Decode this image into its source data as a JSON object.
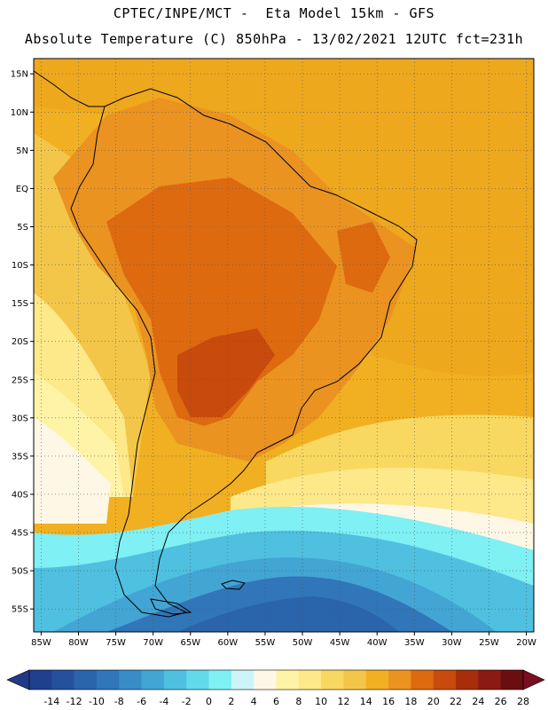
{
  "title_line1": "CPTEC/INPE/MCT -  Eta Model 15km - GFS",
  "title_line2": "Absolute Temperature (C) 850hPa - 13/02/2021 12UTC fct=231h",
  "lat_labels": [
    "15N",
    "10N",
    "5N",
    "EQ",
    "5S",
    "10S",
    "15S",
    "20S",
    "25S",
    "30S",
    "35S",
    "40S",
    "45S",
    "50S",
    "55S"
  ],
  "lon_labels": [
    "85W",
    "80W",
    "75W",
    "70W",
    "65W",
    "60W",
    "55W",
    "50W",
    "45W",
    "40W",
    "35W",
    "30W",
    "25W",
    "20W"
  ],
  "colorbar": {
    "labels": [
      "-14",
      "-12",
      "-10",
      "-8",
      "-6",
      "-4",
      "-2",
      "0",
      "2",
      "4",
      "6",
      "8",
      "10",
      "12",
      "14",
      "16",
      "18",
      "20",
      "22",
      "24",
      "26",
      "28"
    ],
    "colors": [
      "#1f3f8f",
      "#24519c",
      "#2a64ab",
      "#3176b8",
      "#3a8cc6",
      "#42a5d3",
      "#4fc0e0",
      "#63d9ec",
      "#7ff0f3",
      "#cdf4f8",
      "#fff7e6",
      "#fff3a6",
      "#fde88a",
      "#f8d860",
      "#f3c64a",
      "#f1b022",
      "#ea9321",
      "#de6a10",
      "#c84a0c",
      "#a82d0a",
      "#8b1a12",
      "#6a0f10"
    ],
    "left_arrow": "#213a87",
    "right_arrow": "#7a0d1e"
  },
  "colors": {
    "ocean_warm": "#f1b022",
    "ocean_mild": "#f3c64a",
    "ocean_cool": "#fde88a",
    "ocean_cold": "#63d9ec",
    "ocean_coldest": "#2a64ab",
    "land_hot": "#de6a10",
    "land_warm": "#ea9321",
    "land_core": "#c84a0c"
  }
}
